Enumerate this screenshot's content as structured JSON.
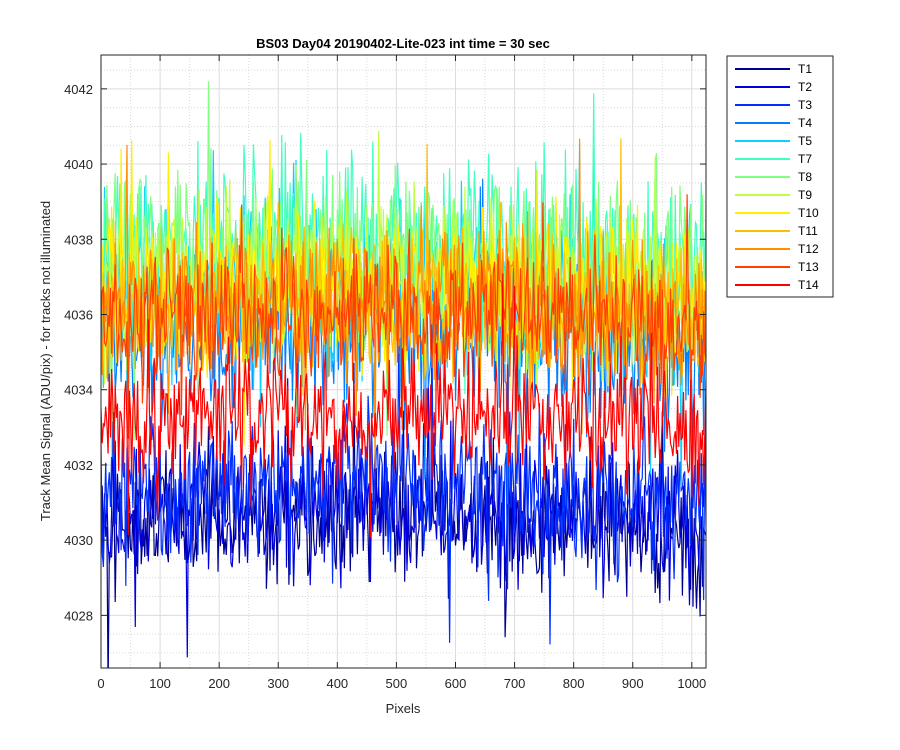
{
  "chart_data": {
    "type": "line",
    "title": "BS03 Day04 20190402-Lite-023 int time = 30 sec",
    "xlabel": "Pixels",
    "ylabel": "Track Mean Signal (ADU/pix) - for tracks not illuminated",
    "xlim": [
      0,
      1024
    ],
    "ylim": [
      4026.6,
      4042.9
    ],
    "xticks": [
      0,
      100,
      200,
      300,
      400,
      500,
      600,
      700,
      800,
      900,
      1000
    ],
    "yticks": [
      4028,
      4030,
      4032,
      4034,
      4036,
      4038,
      4040,
      4042
    ],
    "grid": true,
    "minor_grid": true,
    "legend_position": "outside-right",
    "series": [
      {
        "name": "T1",
        "color": "#00008f",
        "mean": 4030.6,
        "amplitude": 1.1,
        "spikes": 2.3
      },
      {
        "name": "T2",
        "color": "#0000df",
        "mean": 4030.9,
        "amplitude": 1.1,
        "spikes": 2.1
      },
      {
        "name": "T3",
        "color": "#0030ff",
        "mean": 4031.6,
        "amplitude": 1.2,
        "spikes": 2.0
      },
      {
        "name": "T4",
        "color": "#0080ff",
        "mean": 4035.6,
        "amplitude": 1.3,
        "spikes": 2.2
      },
      {
        "name": "T5",
        "color": "#10cfff",
        "mean": 4036.7,
        "amplitude": 1.4,
        "spikes": 2.4
      },
      {
        "name": "T7",
        "color": "#40ffbf",
        "mean": 4037.9,
        "amplitude": 1.4,
        "spikes": 2.6
      },
      {
        "name": "T8",
        "color": "#80ff80",
        "mean": 4037.5,
        "amplitude": 1.4,
        "spikes": 2.4
      },
      {
        "name": "T9",
        "color": "#bfff40",
        "mean": 4037.0,
        "amplitude": 1.3,
        "spikes": 2.3
      },
      {
        "name": "T10",
        "color": "#ffef00",
        "mean": 4036.8,
        "amplitude": 1.3,
        "spikes": 2.5
      },
      {
        "name": "T11",
        "color": "#ffbf00",
        "mean": 4036.5,
        "amplitude": 1.2,
        "spikes": 2.1
      },
      {
        "name": "T12",
        "color": "#ff8f00",
        "mean": 4036.3,
        "amplitude": 1.2,
        "spikes": 2.0
      },
      {
        "name": "T13",
        "color": "#ff4000",
        "mean": 4036.2,
        "amplitude": 1.1,
        "spikes": 1.9
      },
      {
        "name": "T14",
        "color": "#ff0000",
        "mean": 4033.4,
        "amplitude": 1.0,
        "spikes": 1.8
      }
    ]
  }
}
